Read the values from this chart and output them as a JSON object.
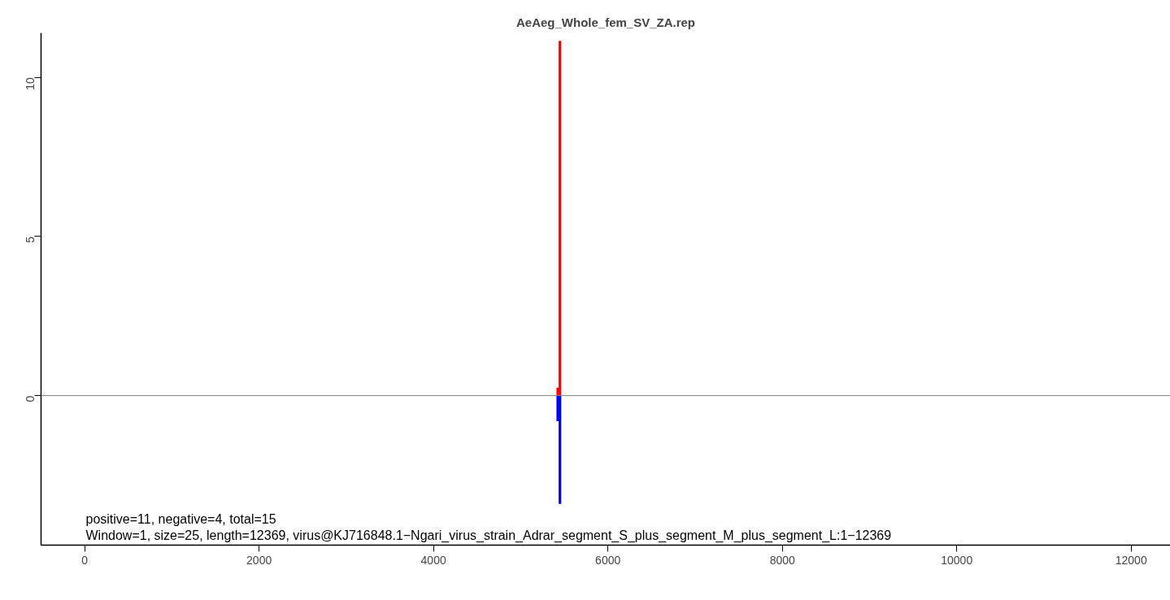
{
  "chart_data": {
    "type": "bar",
    "title": "AeAeg_Whole_fem_SV_ZA.rep",
    "x": [
      5425,
      5450
    ],
    "series": [
      {
        "color": "#ff0000",
        "values": [
          0.25,
          11.15
        ]
      },
      {
        "color": "#0000ff",
        "values": [
          -0.8,
          -3.4
        ]
      }
    ],
    "stacked": true,
    "xlim": [
      -500,
      12450
    ],
    "ylim": [
      -4.7,
      11.4
    ],
    "xticks": [
      0,
      2000,
      4000,
      6000,
      8000,
      10000,
      12000
    ],
    "yticks": [
      0,
      5,
      10
    ],
    "ref_lines": [
      {
        "axis": "y",
        "value": 0,
        "color": "#808080"
      }
    ],
    "annotations": [
      "positive=11, negative=4, total=15",
      "Window=1, size=25, length=12369, virus@KJ716848.1−Ngari_virus_strain_Adrar_segment_S_plus_segment_M_plus_segment_L:1−12369"
    ],
    "grid": false
  }
}
